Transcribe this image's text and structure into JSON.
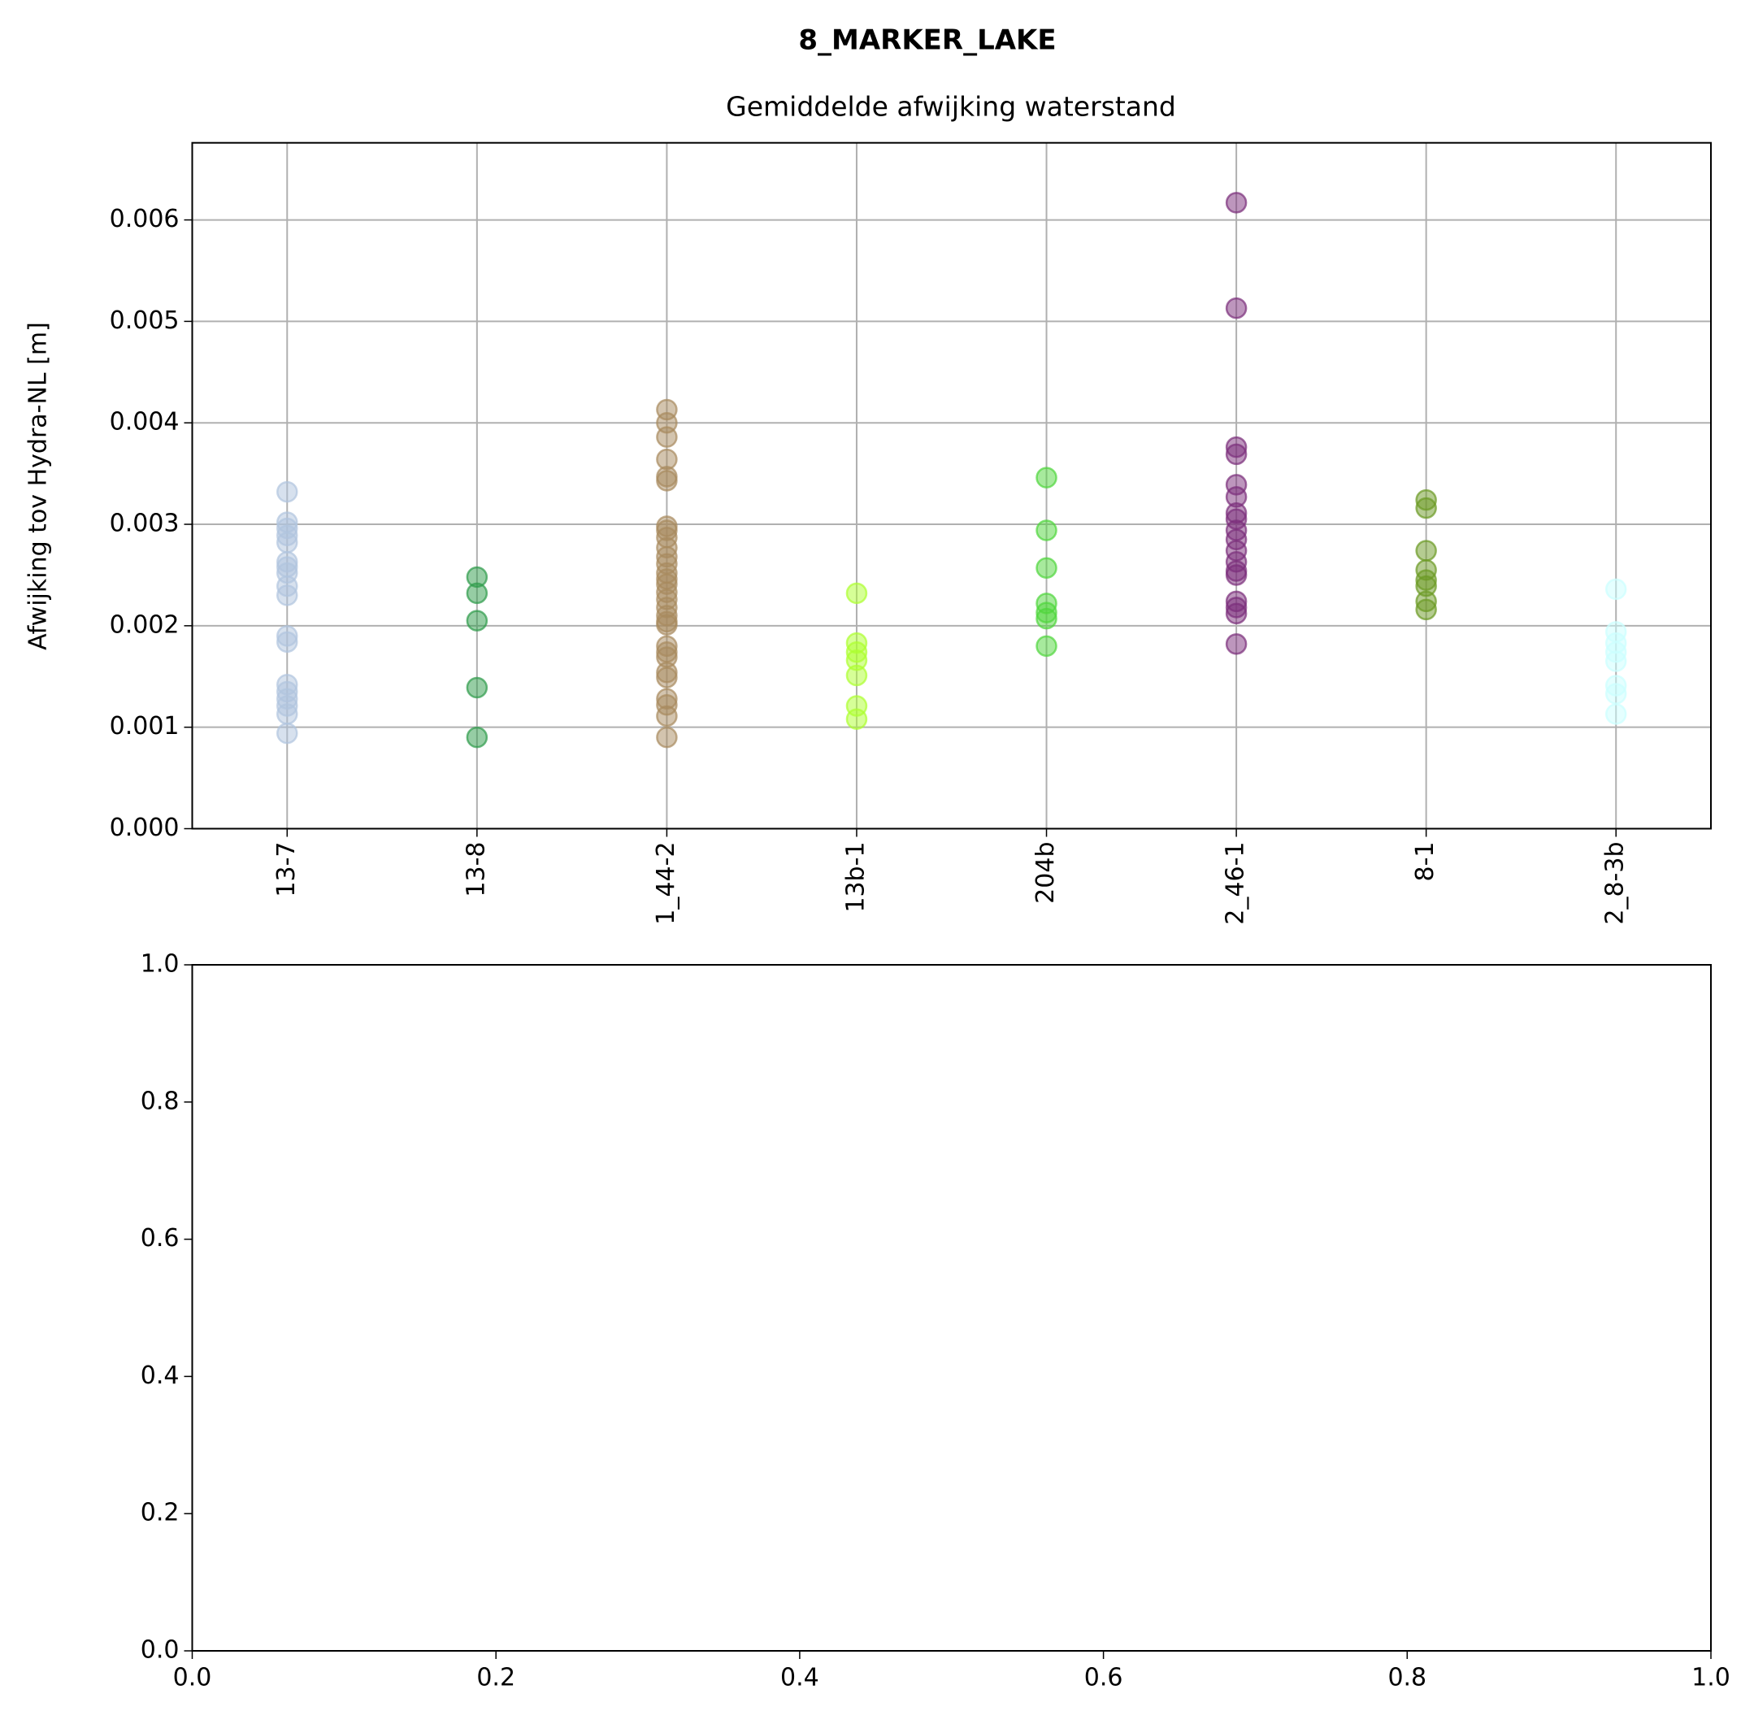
{
  "chart_data": [
    {
      "type": "scatter",
      "suptitle": "8_MARKER_LAKE",
      "title": "Gemiddelde afwijking waterstand",
      "y_label": "Afwijking tov Hydra-NL [m]",
      "categories": [
        "13-7",
        "13-8",
        "1_44-2",
        "13b-1",
        "204b",
        "2_46-1",
        "8-1",
        "2_8-3b"
      ],
      "colors": [
        "#b0c4de",
        "#2e9b4a",
        "#a88a5e",
        "#adff2f",
        "#4fd63c",
        "#7b2d7b",
        "#6b9a23",
        "#ccffff"
      ],
      "values": [
        [
          0.00332,
          0.00302,
          0.00296,
          0.00289,
          0.00282,
          0.00263,
          0.00258,
          0.00252,
          0.00239,
          0.0023,
          0.0019,
          0.00184,
          0.00142,
          0.00135,
          0.00128,
          0.00121,
          0.00113,
          0.00094
        ],
        [
          0.00248,
          0.00232,
          0.00205,
          0.00139,
          0.0009
        ],
        [
          0.00413,
          0.004,
          0.00386,
          0.00364,
          0.00347,
          0.00343,
          0.00298,
          0.00294,
          0.00287,
          0.00277,
          0.00268,
          0.00261,
          0.00252,
          0.00246,
          0.00241,
          0.00233,
          0.00226,
          0.00218,
          0.0021,
          0.00204,
          0.00201,
          0.0018,
          0.00174,
          0.00169,
          0.00154,
          0.00149,
          0.00128,
          0.00122,
          0.00111,
          0.0009
        ],
        [
          0.00232,
          0.00183,
          0.00174,
          0.00166,
          0.00151,
          0.00121,
          0.00108
        ],
        [
          0.00346,
          0.00294,
          0.00257,
          0.00222,
          0.00213,
          0.00207,
          0.0018
        ],
        [
          0.00617,
          0.00513,
          0.00376,
          0.00369,
          0.00339,
          0.00327,
          0.00311,
          0.00305,
          0.00294,
          0.00285,
          0.00274,
          0.00263,
          0.00254,
          0.0025,
          0.00224,
          0.00218,
          0.00212,
          0.00182
        ],
        [
          0.00324,
          0.00316,
          0.00274,
          0.00255,
          0.00245,
          0.00239,
          0.00224,
          0.00216
        ],
        [
          0.00236,
          0.00194,
          0.00183,
          0.00174,
          0.00165,
          0.00141,
          0.00133,
          0.00113
        ]
      ],
      "ylim": [
        0,
        0.00676
      ],
      "yticks": [
        {
          "value": 0,
          "label": "0.000"
        },
        0.001,
        0.002,
        0.003,
        0.004,
        0.005,
        0.006
      ],
      "grid": true
    },
    {
      "type": "empty",
      "xlim": [
        0,
        1
      ],
      "ylim": [
        0,
        1
      ],
      "xticks": [
        {
          "value": 0,
          "label": "0.0"
        },
        0.2,
        0.4,
        0.6,
        0.8,
        {
          "value": 1,
          "label": "1.0"
        }
      ],
      "yticks": [
        {
          "value": 0,
          "label": "0.0"
        },
        0.2,
        0.4,
        0.6,
        0.8,
        {
          "value": 1,
          "label": "1.0"
        }
      ],
      "grid": false
    }
  ]
}
